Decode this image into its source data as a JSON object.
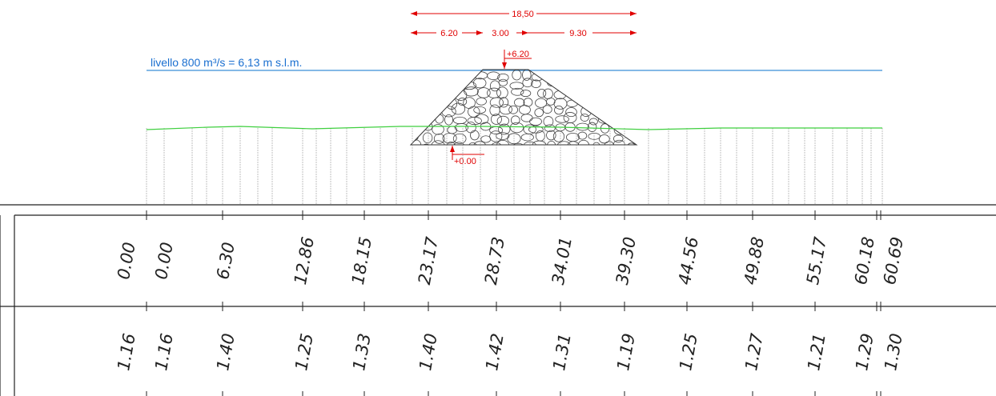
{
  "dimensions": {
    "total": "18,50",
    "parts": [
      "6.20",
      "3.00",
      "9.30"
    ]
  },
  "elevations": {
    "top": "+6.20",
    "bottom": "+0.00"
  },
  "water_level": "livello 800 m³/s = 6,13 m s.l.m.",
  "table": {
    "rows": [
      [
        "0.00",
        "0.00",
        "6.30",
        "12.86",
        "18.15",
        "23.17",
        "28.73",
        "34.01",
        "39.30",
        "44.56",
        "49.88",
        "55.17",
        "60.18",
        "60.69"
      ],
      [
        "1.16",
        "1.16",
        "1.40",
        "1.25",
        "1.33",
        "1.40",
        "1.42",
        "1.31",
        "1.19",
        "1.25",
        "1.27",
        "1.21",
        "1.29",
        "1.30"
      ]
    ]
  }
}
